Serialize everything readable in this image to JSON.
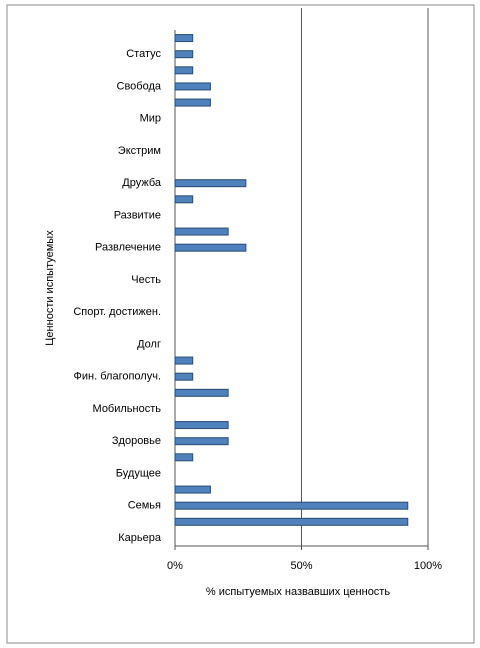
{
  "chart_data": {
    "type": "barh",
    "xlabel": "% испытуемых назвавших ценность",
    "ylabel": "Ценности испытуемых",
    "categories": [
      null,
      "Статус",
      null,
      "Свобода",
      null,
      "Мир",
      null,
      "Экстрим",
      null,
      "Дружба",
      null,
      "Развитие",
      null,
      "Развлечение",
      null,
      "Честь",
      null,
      "Спорт. достижен.",
      null,
      "Долг",
      null,
      "Фин. благополуч.",
      null,
      "Мобильность",
      null,
      "Здоровье",
      null,
      "Будущее",
      null,
      "Семья",
      null,
      "Карьера"
    ],
    "values": [
      7,
      7,
      7,
      14,
      14,
      0,
      0,
      0,
      0,
      28,
      7,
      0,
      21,
      28,
      0,
      0,
      0,
      0,
      0,
      0,
      7,
      7,
      21,
      0,
      21,
      21,
      7,
      0,
      14,
      92,
      92,
      0
    ],
    "color": "#4f81bd",
    "xlim": [
      0,
      100
    ],
    "xticks": [
      {
        "value": 0,
        "label": "0%"
      },
      {
        "value": 50,
        "label": "50%"
      },
      {
        "value": 100,
        "label": "100%"
      }
    ],
    "grid": true
  }
}
